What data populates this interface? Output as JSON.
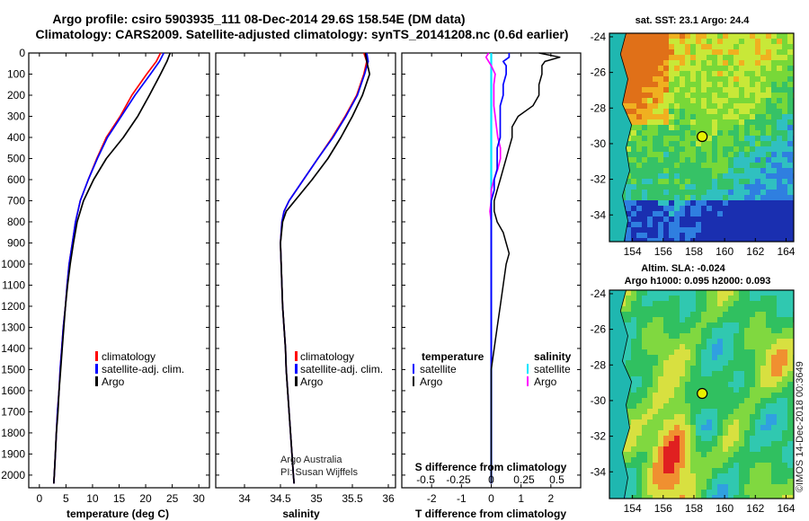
{
  "title": {
    "line1": "Argo profile: csiro 5903935_111 08-Dec-2014 29.6S 158.54E (DM data)",
    "line2": "Climatology: CARS2009. Satellite-adjusted climatology: synTS_20141208.nc (0.6d earlier)"
  },
  "colors": {
    "climatology": "#ff0000",
    "satellite": "#0000ff",
    "argo": "#000000",
    "sal_satellite": "#00e5ff",
    "sal_argo": "#ff00ff"
  },
  "depth_ticks": [
    "0",
    "100",
    "200",
    "300",
    "400",
    "500",
    "600",
    "700",
    "800",
    "900",
    "1000",
    "1100",
    "1200",
    "1300",
    "1400",
    "1500",
    "1600",
    "1700",
    "1800",
    "1900",
    "2000"
  ],
  "chart_data": [
    {
      "type": "line",
      "name": "temperature",
      "xlabel": "temperature (deg C)",
      "ylabel": "depth",
      "xlim": [
        -2,
        32
      ],
      "ylim": [
        2060,
        0
      ],
      "xticks": [
        "0",
        "5",
        "10",
        "15",
        "20",
        "25",
        "30"
      ],
      "legend": [
        "climatology",
        "satellite-adj. clim.",
        "Argo"
      ],
      "depth": [
        0,
        40,
        100,
        200,
        300,
        400,
        500,
        600,
        700,
        800,
        900,
        1000,
        1100,
        1200,
        1300,
        1400,
        1500,
        1600,
        1700,
        1800,
        1900,
        2000,
        2040
      ],
      "series": [
        {
          "name": "climatology",
          "values": [
            22.8,
            22.0,
            20.2,
            17.4,
            15.2,
            12.6,
            10.8,
            9.2,
            7.7,
            6.8,
            6.2,
            5.6,
            5.2,
            4.9,
            4.5,
            4.2,
            3.9,
            3.7,
            3.4,
            3.2,
            3.0,
            2.8,
            2.7
          ]
        },
        {
          "name": "satellite-adj. clim.",
          "values": [
            23.4,
            22.6,
            20.9,
            18.0,
            15.4,
            12.8,
            10.9,
            9.2,
            7.7,
            6.8,
            6.2,
            5.6,
            5.2,
            4.9,
            4.5,
            4.2,
            3.9,
            3.7,
            3.4,
            3.2,
            3.0,
            2.8,
            2.7
          ]
        },
        {
          "name": "Argo",
          "values": [
            24.6,
            24.0,
            22.8,
            20.7,
            18.5,
            15.8,
            12.6,
            10.2,
            8.3,
            7.1,
            6.4,
            5.8,
            5.3,
            4.9,
            4.6,
            4.3,
            4.0,
            3.7,
            3.5,
            3.2,
            3.0,
            2.8,
            2.7
          ]
        }
      ]
    },
    {
      "type": "line",
      "name": "salinity",
      "xlabel": "salinity",
      "ylabel": "depth",
      "xlim": [
        33.6,
        36.1
      ],
      "ylim": [
        2060,
        0
      ],
      "xticks": [
        "34",
        "34.5",
        "35",
        "35.5",
        "36"
      ],
      "legend": [
        "climatology",
        "satellite-adj. clim.",
        "Argo"
      ],
      "credit": [
        "Argo Australia",
        "PI: Susan Wijffels"
      ],
      "depth": [
        0,
        40,
        100,
        200,
        300,
        400,
        500,
        600,
        700,
        750,
        800,
        900,
        1000,
        1100,
        1200,
        1300,
        1400,
        1500,
        1600,
        1700,
        1800,
        1900,
        2000,
        2040
      ],
      "series": [
        {
          "name": "climatology",
          "values": [
            35.66,
            35.7,
            35.66,
            35.56,
            35.4,
            35.22,
            35.02,
            34.82,
            34.62,
            34.55,
            34.52,
            34.5,
            34.51,
            34.52,
            34.53,
            34.55,
            34.57,
            34.58,
            34.6,
            34.62,
            34.64,
            34.66,
            34.68,
            34.69
          ]
        },
        {
          "name": "satellite-adj. clim.",
          "values": [
            35.7,
            35.72,
            35.67,
            35.57,
            35.41,
            35.23,
            35.02,
            34.82,
            34.62,
            34.55,
            34.52,
            34.5,
            34.51,
            34.52,
            34.53,
            34.55,
            34.57,
            34.58,
            34.6,
            34.62,
            34.64,
            34.66,
            34.68,
            34.69
          ]
        },
        {
          "name": "Argo",
          "values": [
            35.68,
            35.7,
            35.74,
            35.64,
            35.5,
            35.34,
            35.16,
            34.94,
            34.7,
            34.58,
            34.53,
            34.5,
            34.51,
            34.52,
            34.53,
            34.55,
            34.57,
            34.58,
            34.6,
            34.62,
            34.64,
            34.66,
            34.68,
            34.69
          ]
        }
      ]
    },
    {
      "type": "line",
      "name": "difference from climatology",
      "xlabel": "T difference from climatology",
      "xlabel_top": "S difference from climatology",
      "xlim": [
        -3,
        3
      ],
      "ylim": [
        2060,
        0
      ],
      "xticks": [
        "-2",
        "-1",
        "0",
        "1",
        "2"
      ],
      "xticks_top": [
        "-0.5",
        "-0.25",
        "0",
        "0.25",
        "0.5"
      ],
      "legend_temperature_title": "temperature",
      "legend_salinity_title": "salinity",
      "legend": [
        "satellite",
        "Argo",
        "satellite",
        "Argo"
      ],
      "depth": [
        0,
        20,
        40,
        60,
        100,
        150,
        200,
        250,
        300,
        350,
        400,
        450,
        500,
        550,
        600,
        650,
        700,
        750,
        800,
        850,
        900,
        950,
        1000,
        1100,
        1200,
        1300,
        1400,
        1500,
        1600,
        1700,
        1800,
        1900,
        2000,
        2040
      ],
      "series": [
        {
          "name": "T satellite",
          "values": [
            0.6,
            0.6,
            0.4,
            0.5,
            0.5,
            0.4,
            0.4,
            0.3,
            0.3,
            0.3,
            0.3,
            0.2,
            0.2,
            0.2,
            0.1,
            0.1,
            0.0,
            0.0,
            0.0,
            0.0,
            0.0,
            0.0,
            0.0,
            0.0,
            0.0,
            0.0,
            0.0,
            0.0,
            0.0,
            0.0,
            0.0,
            0.0,
            0.0,
            0.0
          ]
        },
        {
          "name": "T Argo",
          "values": [
            1.6,
            2.3,
            1.8,
            1.7,
            1.7,
            1.6,
            1.6,
            1.4,
            0.9,
            0.7,
            0.7,
            0.6,
            0.5,
            0.4,
            0.3,
            0.2,
            0.1,
            0.1,
            0.2,
            0.4,
            0.5,
            0.6,
            0.5,
            0.4,
            0.3,
            0.2,
            0.1,
            0.0,
            0.0,
            0.0,
            0.0,
            0.0,
            0.0,
            0.0
          ]
        },
        {
          "name": "S satellite",
          "values": [
            0.0,
            0.0,
            0.0,
            0.0,
            0.0,
            0.0,
            0.0,
            0.0,
            0.0,
            0.0,
            0.0,
            0.0,
            0.0,
            0.0,
            0.0,
            0.0,
            0.0,
            0.0,
            0.0,
            0.0,
            0.0,
            0.0,
            0.0,
            0.0,
            0.0,
            0.0,
            0.0,
            0.0,
            0.0,
            0.0,
            0.0,
            0.0,
            0.0,
            0.0
          ]
        },
        {
          "name": "S Argo",
          "values": [
            -0.02,
            -0.04,
            -0.02,
            0.0,
            0.03,
            0.02,
            0.02,
            0.02,
            0.03,
            0.04,
            0.05,
            0.07,
            0.07,
            0.05,
            0.02,
            0.0,
            0.0,
            -0.01,
            0.0,
            0.0,
            0.0,
            0.0,
            0.0,
            0.0,
            0.0,
            0.0,
            0.0,
            0.0,
            0.0,
            0.0,
            0.0,
            0.0,
            0.0,
            0.0
          ]
        }
      ]
    },
    {
      "type": "heatmap",
      "name": "sst-map",
      "title": "sat. SST: 23.1  Argo: 24.4",
      "xticks": [
        "154",
        "156",
        "158",
        "160",
        "162",
        "164"
      ],
      "yticks": [
        "-24",
        "-26",
        "-28",
        "-30",
        "-32",
        "-34"
      ],
      "xlim": [
        152.5,
        164.5
      ],
      "ylim": [
        -35.5,
        -23.8
      ],
      "marker": {
        "lon": 158.54,
        "lat": -29.6
      }
    },
    {
      "type": "heatmap",
      "name": "sla-map",
      "title1": "Altim. SLA: -0.024",
      "title2": "Argo h1000: 0.095  h2000: 0.093",
      "xticks": [
        "154",
        "156",
        "158",
        "160",
        "162",
        "164"
      ],
      "yticks": [
        "-24",
        "-26",
        "-28",
        "-30",
        "-32",
        "-34"
      ],
      "xlim": [
        152.5,
        164.5
      ],
      "ylim": [
        -35.5,
        -23.8
      ],
      "marker": {
        "lon": 158.54,
        "lat": -29.6
      },
      "credit": "©IMOS 14-Dec-2018 00:3649"
    }
  ]
}
